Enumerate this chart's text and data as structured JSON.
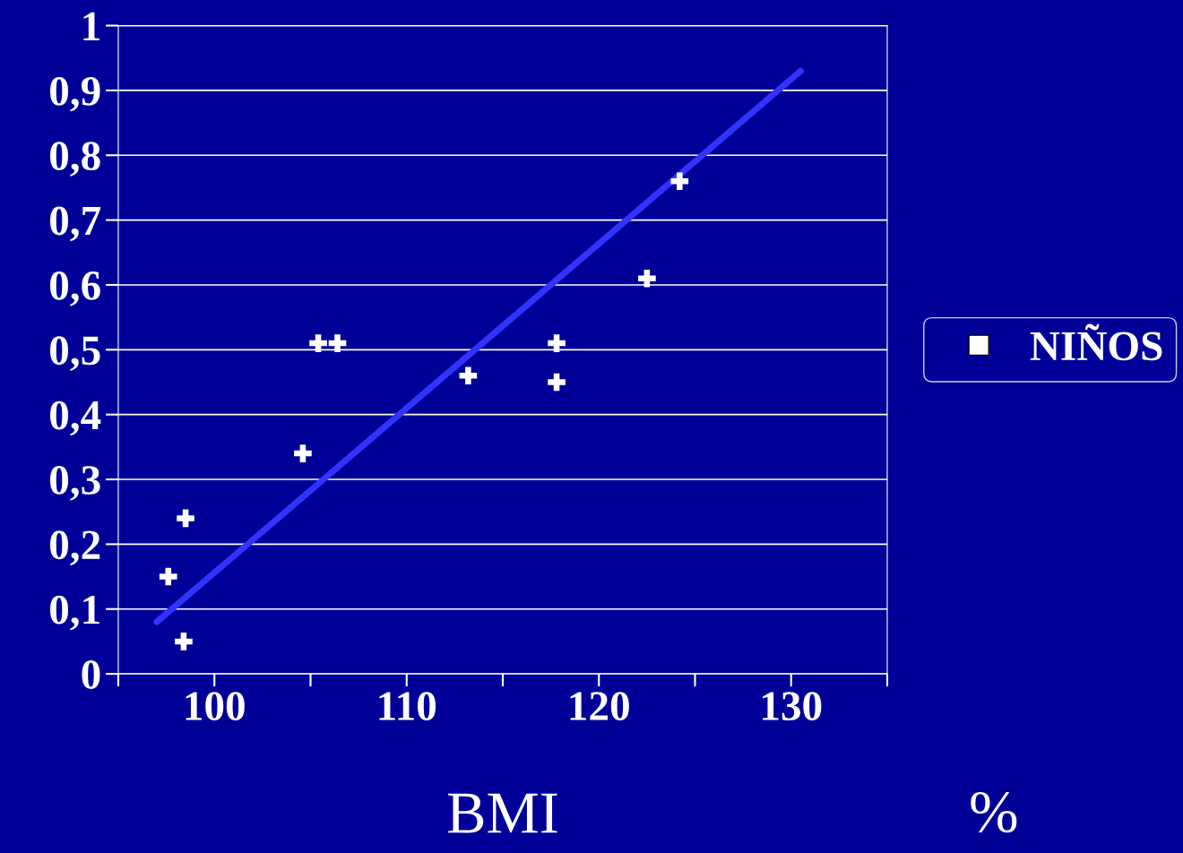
{
  "chart_data": {
    "type": "scatter",
    "xlabel": "BMI",
    "annotations": [
      "%"
    ],
    "xlim": [
      95,
      135
    ],
    "xticks": [
      {
        "value": 95,
        "label": null
      },
      100,
      {
        "value": 105,
        "label": null
      },
      110,
      {
        "value": 115,
        "label": null
      },
      120,
      {
        "value": 125,
        "label": null
      },
      130,
      {
        "value": 135,
        "label": null
      }
    ],
    "ylim": [
      0,
      1
    ],
    "yticks": [
      {
        "value": 0,
        "label": "0"
      },
      {
        "value": 0.1,
        "label": "0,1"
      },
      {
        "value": 0.2,
        "label": "0,2"
      },
      {
        "value": 0.3,
        "label": "0,3"
      },
      {
        "value": 0.4,
        "label": "0,4"
      },
      {
        "value": 0.5,
        "label": "0,5"
      },
      {
        "value": 0.6,
        "label": "0,6"
      },
      {
        "value": 0.7,
        "label": "0,7"
      },
      {
        "value": 0.8,
        "label": "0,8"
      },
      {
        "value": 0.9,
        "label": "0,9"
      },
      {
        "value": 1,
        "label": "1"
      }
    ],
    "grid": "y",
    "legend": "right",
    "series": [
      {
        "name": "NIÑOS",
        "color": "#ffffff",
        "marker": "cross",
        "x": [
          98.5,
          97.6,
          98.4,
          104.6,
          105.4,
          106.4,
          113.2,
          117.8,
          117.8,
          122.5,
          124.2
        ],
        "values": [
          0.24,
          0.15,
          0.05,
          0.34,
          0.51,
          0.51,
          0.46,
          0.51,
          0.45,
          0.61,
          0.76
        ]
      },
      {
        "type": "line",
        "color": "#3333ff",
        "x": [
          97.0,
          130.5
        ],
        "values": [
          0.08,
          0.93
        ]
      }
    ]
  }
}
